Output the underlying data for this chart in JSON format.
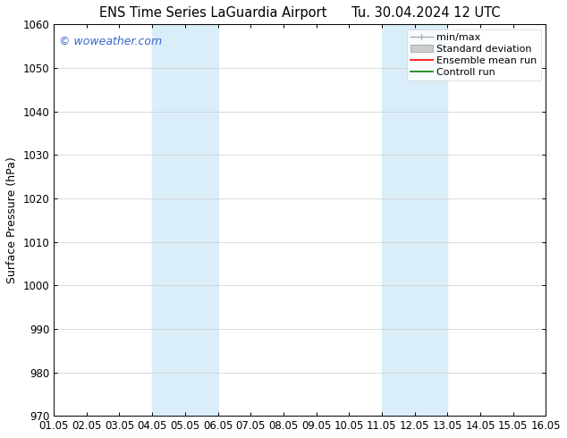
{
  "title_left": "ENS Time Series LaGuardia Airport",
  "title_right": "Tu. 30.04.2024 12 UTC",
  "ylabel": "Surface Pressure (hPa)",
  "xlabel": "",
  "ylim": [
    970,
    1060
  ],
  "yticks": [
    970,
    980,
    990,
    1000,
    1010,
    1020,
    1030,
    1040,
    1050,
    1060
  ],
  "xtick_labels": [
    "01.05",
    "02.05",
    "03.05",
    "04.05",
    "05.05",
    "06.05",
    "07.05",
    "08.05",
    "09.05",
    "10.05",
    "11.05",
    "12.05",
    "13.05",
    "14.05",
    "15.05",
    "16.05"
  ],
  "xlim": [
    0,
    15
  ],
  "watermark": "© woweather.com",
  "watermark_color": "#3366cc",
  "bg_color": "#ffffff",
  "plot_bg_color": "#ffffff",
  "shaded_regions": [
    {
      "xstart": 3,
      "xend": 5,
      "color": "#daeef9"
    },
    {
      "xstart": 10,
      "xend": 12,
      "color": "#daeef9"
    }
  ],
  "legend_entries": [
    {
      "label": "min/max",
      "color": "#aaaaaa",
      "lw": 1.0
    },
    {
      "label": "Standard deviation",
      "color": "#cccccc",
      "lw": 6
    },
    {
      "label": "Ensemble mean run",
      "color": "#ff0000",
      "lw": 1.2
    },
    {
      "label": "Controll run",
      "color": "#008000",
      "lw": 1.2
    }
  ],
  "grid_color": "#cccccc",
  "tick_label_fontsize": 8.5,
  "title_fontsize": 10.5,
  "ylabel_fontsize": 9,
  "watermark_fontsize": 9,
  "legend_fontsize": 8
}
